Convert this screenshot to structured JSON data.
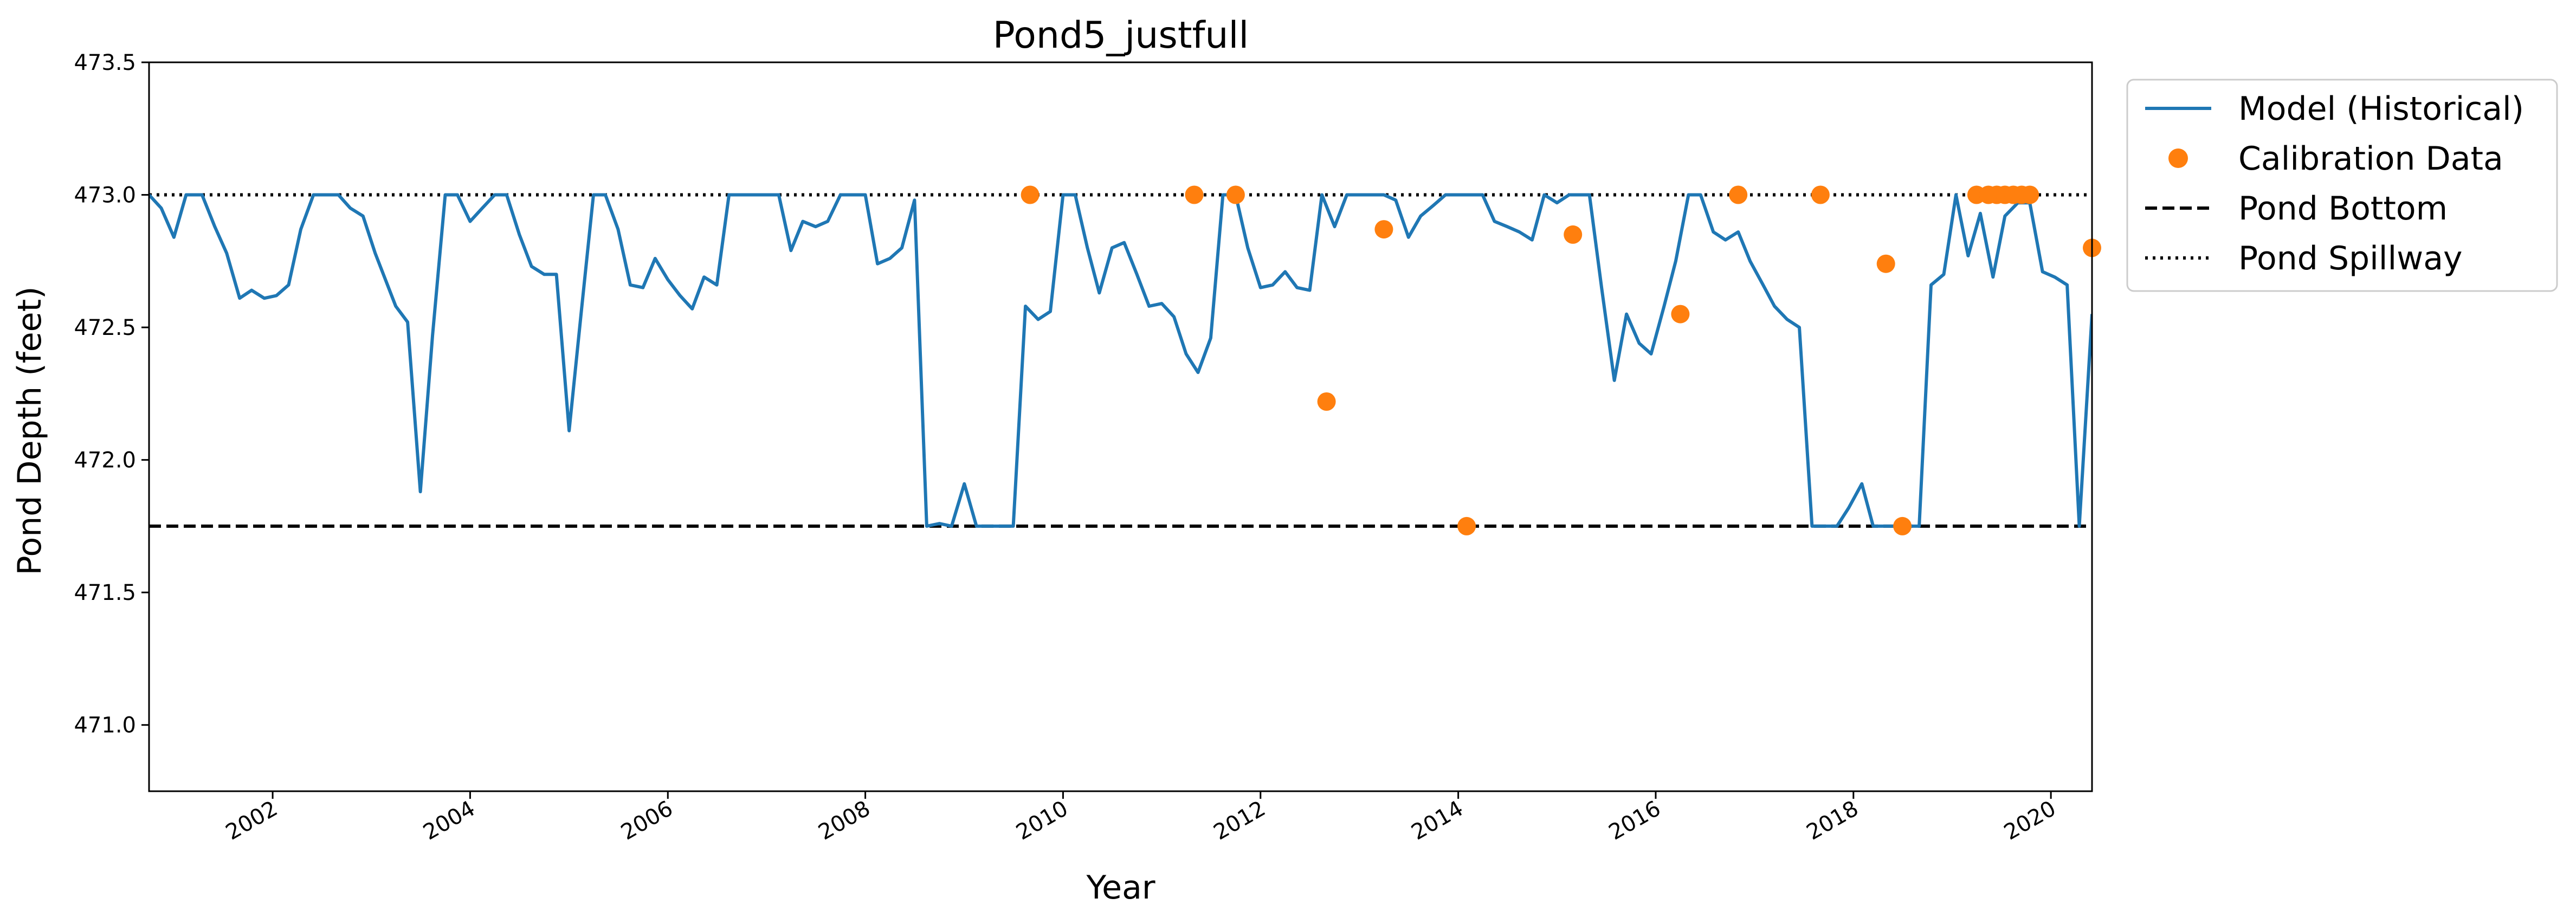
{
  "chart_data": {
    "type": "line",
    "title": "Pond5_justfull",
    "xlabel": "Year",
    "ylabel": "Pond Depth (feet)",
    "xlim": [
      "2000-10-01",
      "2020-06-01"
    ],
    "ylim": [
      470.75,
      473.5
    ],
    "x_ticks": [
      "2002-01-01",
      "2004-01-01",
      "2006-01-01",
      "2008-01-01",
      "2010-01-01",
      "2012-01-01",
      "2014-01-01",
      "2016-01-01",
      "2018-01-01",
      "2020-01-01"
    ],
    "x_tick_labels": [
      "2002",
      "2004",
      "2006",
      "2008",
      "2010",
      "2012",
      "2014",
      "2016",
      "2018",
      "2020"
    ],
    "y_ticks": [
      471.0,
      471.5,
      472.0,
      472.5,
      473.0,
      473.5
    ],
    "y_tick_labels": [
      "471.0",
      "471.5",
      "472.0",
      "472.5",
      "473.0",
      "473.5"
    ],
    "grid": false,
    "legend_position": "outside-right",
    "pond_bottom": 471.75,
    "pond_spillway": 473.0,
    "colors": {
      "model": "#1f77b4",
      "calibration": "#ff7f0e",
      "reference": "#000000"
    },
    "series": [
      {
        "name": "Model (Historical)",
        "kind": "line",
        "points": [
          [
            "2000-10-01",
            473.0
          ],
          [
            "2000-11-15",
            472.95
          ],
          [
            "2001-01-01",
            472.84
          ],
          [
            "2001-02-15",
            473.0
          ],
          [
            "2001-04-15",
            473.0
          ],
          [
            "2001-06-01",
            472.88
          ],
          [
            "2001-07-15",
            472.78
          ],
          [
            "2001-09-01",
            472.61
          ],
          [
            "2001-10-15",
            472.64
          ],
          [
            "2001-12-01",
            472.61
          ],
          [
            "2002-01-15",
            472.62
          ],
          [
            "2002-03-01",
            472.66
          ],
          [
            "2002-04-15",
            472.87
          ],
          [
            "2002-06-01",
            473.0
          ],
          [
            "2002-09-01",
            473.0
          ],
          [
            "2002-10-15",
            472.95
          ],
          [
            "2002-12-01",
            472.92
          ],
          [
            "2003-01-15",
            472.78
          ],
          [
            "2003-04-01",
            472.58
          ],
          [
            "2003-05-15",
            472.52
          ],
          [
            "2003-07-01",
            471.88
          ],
          [
            "2003-08-15",
            472.47
          ],
          [
            "2003-10-01",
            473.0
          ],
          [
            "2003-11-15",
            473.0
          ],
          [
            "2004-01-01",
            472.9
          ],
          [
            "2004-02-15",
            472.95
          ],
          [
            "2004-04-01",
            473.0
          ],
          [
            "2004-05-15",
            473.0
          ],
          [
            "2004-07-01",
            472.85
          ],
          [
            "2004-08-15",
            472.73
          ],
          [
            "2004-10-01",
            472.7
          ],
          [
            "2004-11-15",
            472.7
          ],
          [
            "2005-01-01",
            472.11
          ],
          [
            "2005-02-15",
            472.56
          ],
          [
            "2005-04-01",
            473.0
          ],
          [
            "2005-05-15",
            473.0
          ],
          [
            "2005-07-01",
            472.87
          ],
          [
            "2005-08-15",
            472.66
          ],
          [
            "2005-10-01",
            472.65
          ],
          [
            "2005-11-15",
            472.76
          ],
          [
            "2006-01-01",
            472.68
          ],
          [
            "2006-02-15",
            472.62
          ],
          [
            "2006-04-01",
            472.57
          ],
          [
            "2006-05-15",
            472.69
          ],
          [
            "2006-07-01",
            472.66
          ],
          [
            "2006-08-15",
            473.0
          ],
          [
            "2006-10-01",
            473.0
          ],
          [
            "2006-11-15",
            473.0
          ],
          [
            "2007-01-01",
            473.0
          ],
          [
            "2007-02-15",
            473.0
          ],
          [
            "2007-04-01",
            472.79
          ],
          [
            "2007-05-15",
            472.9
          ],
          [
            "2007-07-01",
            472.88
          ],
          [
            "2007-08-15",
            472.9
          ],
          [
            "2007-10-01",
            473.0
          ],
          [
            "2007-11-15",
            473.0
          ],
          [
            "2008-01-01",
            473.0
          ],
          [
            "2008-02-15",
            472.74
          ],
          [
            "2008-04-01",
            472.76
          ],
          [
            "2008-05-15",
            472.8
          ],
          [
            "2008-07-01",
            472.98
          ],
          [
            "2008-08-15",
            471.75
          ],
          [
            "2008-10-01",
            471.76
          ],
          [
            "2008-11-15",
            471.75
          ],
          [
            "2009-01-01",
            471.91
          ],
          [
            "2009-02-15",
            471.75
          ],
          [
            "2009-04-01",
            471.75
          ],
          [
            "2009-05-15",
            471.75
          ],
          [
            "2009-07-01",
            471.75
          ],
          [
            "2009-08-15",
            472.58
          ],
          [
            "2009-10-01",
            472.53
          ],
          [
            "2009-11-15",
            472.56
          ],
          [
            "2010-01-01",
            473.0
          ],
          [
            "2010-02-15",
            473.0
          ],
          [
            "2010-04-01",
            472.8
          ],
          [
            "2010-05-15",
            472.63
          ],
          [
            "2010-07-01",
            472.8
          ],
          [
            "2010-08-15",
            472.82
          ],
          [
            "2010-10-01",
            472.7
          ],
          [
            "2010-11-15",
            472.58
          ],
          [
            "2011-01-01",
            472.59
          ],
          [
            "2011-02-15",
            472.54
          ],
          [
            "2011-04-01",
            472.4
          ],
          [
            "2011-05-15",
            472.33
          ],
          [
            "2011-07-01",
            472.46
          ],
          [
            "2011-08-15",
            473.0
          ],
          [
            "2011-10-01",
            473.0
          ],
          [
            "2011-11-15",
            472.8
          ],
          [
            "2012-01-01",
            472.65
          ],
          [
            "2012-02-15",
            472.66
          ],
          [
            "2012-04-01",
            472.71
          ],
          [
            "2012-05-15",
            472.65
          ],
          [
            "2012-07-01",
            472.64
          ],
          [
            "2012-08-15",
            473.0
          ],
          [
            "2012-10-01",
            472.88
          ],
          [
            "2012-11-15",
            473.0
          ],
          [
            "2013-01-01",
            473.0
          ],
          [
            "2013-04-01",
            473.0
          ],
          [
            "2013-05-15",
            472.98
          ],
          [
            "2013-07-01",
            472.84
          ],
          [
            "2013-08-15",
            472.92
          ],
          [
            "2013-10-01",
            472.96
          ],
          [
            "2013-11-15",
            473.0
          ],
          [
            "2014-01-01",
            473.0
          ],
          [
            "2014-04-01",
            473.0
          ],
          [
            "2014-05-15",
            472.9
          ],
          [
            "2014-07-01",
            472.88
          ],
          [
            "2014-08-15",
            472.86
          ],
          [
            "2014-10-01",
            472.83
          ],
          [
            "2014-11-15",
            473.0
          ],
          [
            "2015-01-01",
            472.97
          ],
          [
            "2015-02-15",
            473.0
          ],
          [
            "2015-05-01",
            473.0
          ],
          [
            "2015-06-15",
            472.65
          ],
          [
            "2015-08-01",
            472.3
          ],
          [
            "2015-09-15",
            472.55
          ],
          [
            "2015-11-01",
            472.44
          ],
          [
            "2015-12-15",
            472.4
          ],
          [
            "2016-02-01",
            472.58
          ],
          [
            "2016-03-15",
            472.75
          ],
          [
            "2016-05-01",
            473.0
          ],
          [
            "2016-06-15",
            473.0
          ],
          [
            "2016-08-01",
            472.86
          ],
          [
            "2016-09-15",
            472.83
          ],
          [
            "2016-11-01",
            472.86
          ],
          [
            "2016-12-15",
            472.75
          ],
          [
            "2017-02-01",
            472.66
          ],
          [
            "2017-03-15",
            472.58
          ],
          [
            "2017-05-01",
            472.53
          ],
          [
            "2017-06-15",
            472.5
          ],
          [
            "2017-08-01",
            471.75
          ],
          [
            "2017-09-15",
            471.75
          ],
          [
            "2017-11-01",
            471.75
          ],
          [
            "2017-12-15",
            471.82
          ],
          [
            "2018-02-01",
            471.91
          ],
          [
            "2018-03-15",
            471.75
          ],
          [
            "2018-06-01",
            471.75
          ],
          [
            "2018-07-15",
            471.75
          ],
          [
            "2018-09-01",
            471.75
          ],
          [
            "2018-10-15",
            472.66
          ],
          [
            "2018-12-01",
            472.7
          ],
          [
            "2019-01-15",
            473.0
          ],
          [
            "2019-03-01",
            472.77
          ],
          [
            "2019-04-15",
            472.93
          ],
          [
            "2019-06-01",
            472.69
          ],
          [
            "2019-07-15",
            472.92
          ],
          [
            "2019-09-01",
            472.97
          ],
          [
            "2019-10-15",
            472.97
          ],
          [
            "2019-12-01",
            472.71
          ],
          [
            "2020-01-15",
            472.69
          ],
          [
            "2020-03-01",
            472.66
          ],
          [
            "2020-04-15",
            471.75
          ],
          [
            "2020-06-01",
            472.55
          ]
        ]
      },
      {
        "name": "Calibration Data",
        "kind": "scatter",
        "points": [
          [
            "2009-09-01",
            473.0
          ],
          [
            "2011-05-01",
            473.0
          ],
          [
            "2011-10-01",
            473.0
          ],
          [
            "2012-09-01",
            472.22
          ],
          [
            "2013-04-01",
            472.87
          ],
          [
            "2014-02-01",
            471.75
          ],
          [
            "2015-03-01",
            472.85
          ],
          [
            "2016-04-01",
            472.55
          ],
          [
            "2016-11-01",
            473.0
          ],
          [
            "2017-09-01",
            473.0
          ],
          [
            "2018-05-01",
            472.74
          ],
          [
            "2018-07-01",
            471.75
          ],
          [
            "2019-04-01",
            473.0
          ],
          [
            "2019-05-15",
            473.0
          ],
          [
            "2019-06-15",
            473.0
          ],
          [
            "2019-07-15",
            473.0
          ],
          [
            "2019-08-15",
            473.0
          ],
          [
            "2019-09-15",
            473.0
          ],
          [
            "2019-10-15",
            473.0
          ],
          [
            "2020-06-01",
            472.8
          ]
        ]
      },
      {
        "name": "Pond Bottom",
        "kind": "hline",
        "style": "dashed",
        "value": 471.75
      },
      {
        "name": "Pond Spillway",
        "kind": "hline",
        "style": "dotted",
        "value": 473.0
      }
    ]
  }
}
